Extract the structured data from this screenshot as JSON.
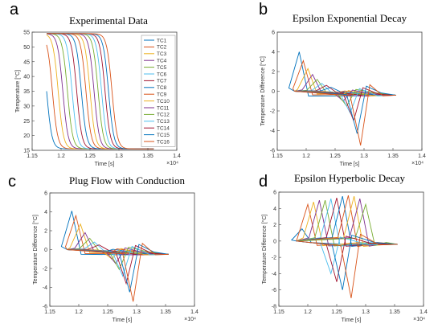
{
  "colors": [
    "#0072BD",
    "#D95319",
    "#EDB120",
    "#7E2F8E",
    "#77AC30",
    "#4DBEEE",
    "#A2142F",
    "#0072BD",
    "#D95319",
    "#EDB120",
    "#7E2F8E",
    "#77AC30",
    "#4DBEEE",
    "#A2142F",
    "#0072BD",
    "#D95319"
  ],
  "chart_data": [
    {
      "type": "line",
      "letter": "a",
      "title": "Experimental Data",
      "xlabel": "Time [s]",
      "ylabel": "Temperature [°C]",
      "x_exponent": "×10⁴",
      "xlim": [
        1.15,
        1.4
      ],
      "ylim": [
        15,
        55
      ],
      "xticks": [
        "1.15",
        "1.2",
        "1.25",
        "1.3",
        "1.35",
        "1.4"
      ],
      "yticks": [
        "15",
        "20",
        "25",
        "30",
        "35",
        "40",
        "45",
        "50",
        "55"
      ],
      "legend_position": "right",
      "series_names": [
        "TC1",
        "TC2",
        "TC3",
        "TC4",
        "TC5",
        "TC6",
        "TC7",
        "TC8",
        "TC9",
        "TC10",
        "TC11",
        "TC12",
        "TC13",
        "TC14",
        "TC15",
        "TC16"
      ],
      "drop_centers_x": [
        1.175,
        1.185,
        1.195,
        1.203,
        1.211,
        1.219,
        1.227,
        1.235,
        1.243,
        1.25,
        1.257,
        1.264,
        1.27,
        1.276,
        1.282,
        1.288
      ],
      "high_y": 54.5,
      "low_y": 15.5
    },
    {
      "type": "line",
      "letter": "b",
      "title": "Epsilon Exponential Decay",
      "xlabel": "Time [s]",
      "ylabel": "Temperature Difference [°C]",
      "x_exponent": "×10⁴",
      "xlim": [
        1.15,
        1.4
      ],
      "ylim": [
        -6,
        6
      ],
      "xticks": [
        "1.15",
        "1.2",
        "1.25",
        "1.3",
        "1.35",
        "1.4"
      ],
      "yticks": [
        "-6",
        "-4",
        "-2",
        "0",
        "2",
        "4",
        "6"
      ],
      "peak_x": [
        1.188,
        1.195,
        1.203,
        1.211,
        1.219,
        1.227,
        1.235,
        1.243,
        1.25,
        1.257,
        1.264,
        1.27,
        1.276,
        1.282,
        1.288,
        1.294
      ],
      "peak_y": [
        4.0,
        3.1,
        2.3,
        1.7,
        1.2,
        0.8,
        0.6,
        0.4,
        -0.2,
        -0.6,
        -1.0,
        -1.5,
        -2.2,
        -3.0,
        -4.3,
        -5.5
      ],
      "end_x": 1.355,
      "end_y": -0.4
    },
    {
      "type": "line",
      "letter": "c",
      "title": "Plug Flow with Conduction",
      "xlabel": "Time [s]",
      "ylabel": "Temperature Difference [°C]",
      "x_exponent": "×10⁴",
      "xlim": [
        1.15,
        1.4
      ],
      "ylim": [
        -6,
        6
      ],
      "xticks": [
        "1.15",
        "1.2",
        "1.25",
        "1.3",
        "1.35",
        "1.4"
      ],
      "yticks": [
        "-6",
        "-4",
        "-2",
        "0",
        "2",
        "4",
        "6"
      ],
      "peak_x": [
        1.188,
        1.195,
        1.203,
        1.211,
        1.219,
        1.227,
        1.235,
        1.243,
        1.25,
        1.257,
        1.264,
        1.27,
        1.276,
        1.282,
        1.288,
        1.294
      ],
      "peak_y": [
        4.1,
        3.6,
        2.7,
        1.8,
        1.2,
        0.8,
        0.5,
        -0.3,
        -0.6,
        -1.0,
        -1.5,
        -2.1,
        -2.8,
        -3.6,
        -4.5,
        -5.5
      ],
      "end_x": 1.355,
      "end_y": -0.5
    },
    {
      "type": "line",
      "letter": "d",
      "title": "Epsilon Hyperbolic Decay",
      "xlabel": "Time [s]",
      "ylabel": "Temperature Difference [°C]",
      "x_exponent": "×10⁴",
      "xlim": [
        1.15,
        1.4
      ],
      "ylim": [
        -8,
        6
      ],
      "xticks": [
        "1.15",
        "1.2",
        "1.25",
        "1.3",
        "1.35",
        "1.4"
      ],
      "yticks": [
        "-8",
        "-6",
        "-4",
        "-2",
        "0",
        "2",
        "4",
        "6"
      ],
      "peak_x": [
        1.19,
        1.2,
        1.21,
        1.22,
        1.23,
        1.24,
        1.25,
        1.26,
        1.27,
        1.28,
        1.29,
        1.3,
        1.24,
        1.25,
        1.26,
        1.275
      ],
      "peak_y": [
        1.5,
        4.5,
        4.8,
        5.0,
        5.0,
        5.2,
        5.3,
        5.5,
        5.6,
        5.5,
        5.2,
        4.5,
        -4.0,
        -5.0,
        -6.0,
        -7.0
      ],
      "end_x": 1.355,
      "end_y": -0.4
    }
  ]
}
